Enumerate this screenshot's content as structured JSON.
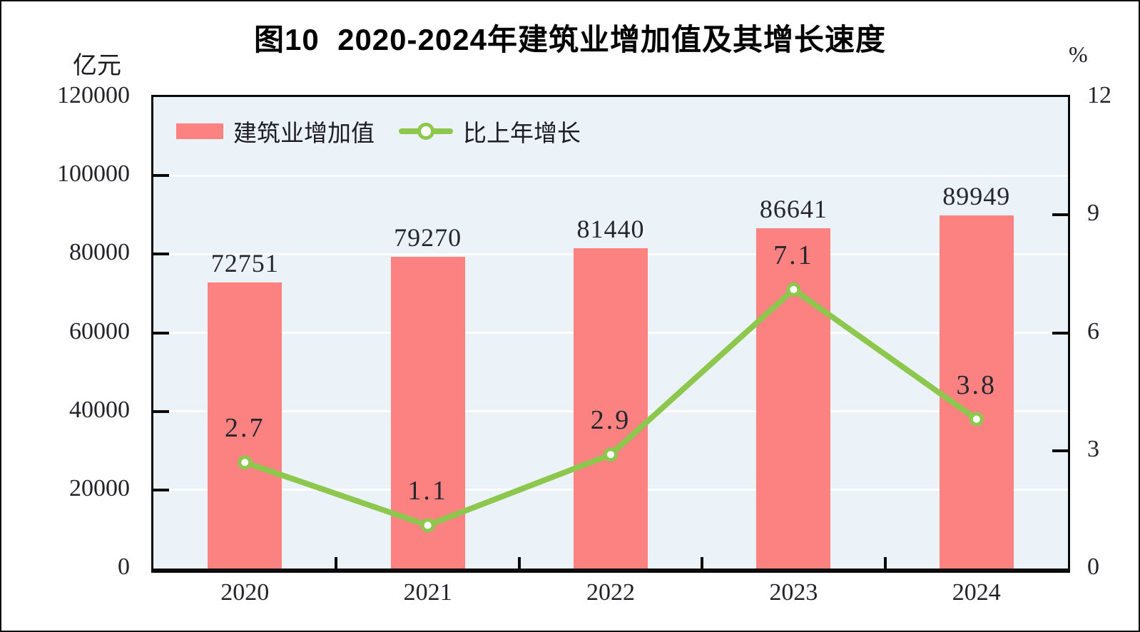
{
  "page": {
    "title": "图10  2020-2024年建筑业增加值及其增长速度"
  },
  "chart_data": {
    "type": "bar",
    "title": "图10  2020-2024年建筑业增加值及其增长速度",
    "categories": [
      "2020",
      "2021",
      "2022",
      "2023",
      "2024"
    ],
    "series": [
      {
        "name": "建筑业增加值",
        "kind": "bar",
        "axis": "left",
        "unit": "亿元",
        "values": [
          72751,
          79270,
          81440,
          86641,
          89949
        ]
      },
      {
        "name": "比上年增长",
        "kind": "line",
        "axis": "right",
        "unit": "%",
        "values": [
          2.7,
          1.1,
          2.9,
          7.1,
          3.8
        ]
      }
    ],
    "value_labels": {
      "bar": [
        "72751",
        "79270",
        "81440",
        "86641",
        "89949"
      ],
      "line": [
        "2.7",
        "1.1",
        "2.9",
        "7.1",
        "3.8"
      ]
    },
    "left_axis": {
      "label": "亿元",
      "min": 0,
      "max": 120000,
      "tick_step": 20000,
      "ticks": [
        "0",
        "20000",
        "40000",
        "60000",
        "80000",
        "100000",
        "120000"
      ]
    },
    "right_axis": {
      "label": "%",
      "min": 0,
      "max": 12,
      "tick_step": 3,
      "ticks": [
        "0",
        "3",
        "6",
        "9",
        "12"
      ]
    },
    "grid": "horizontal-white",
    "legend_position": "top-left-inside",
    "colors": {
      "bar": "#FC8282",
      "line": "#8DC74E",
      "marker_fill": "#FFFFFF",
      "plot_bg": "#EBF3F8",
      "grid": "#FFFFFF",
      "axis": "#0A0A0A",
      "label_text": "#26262E"
    }
  }
}
